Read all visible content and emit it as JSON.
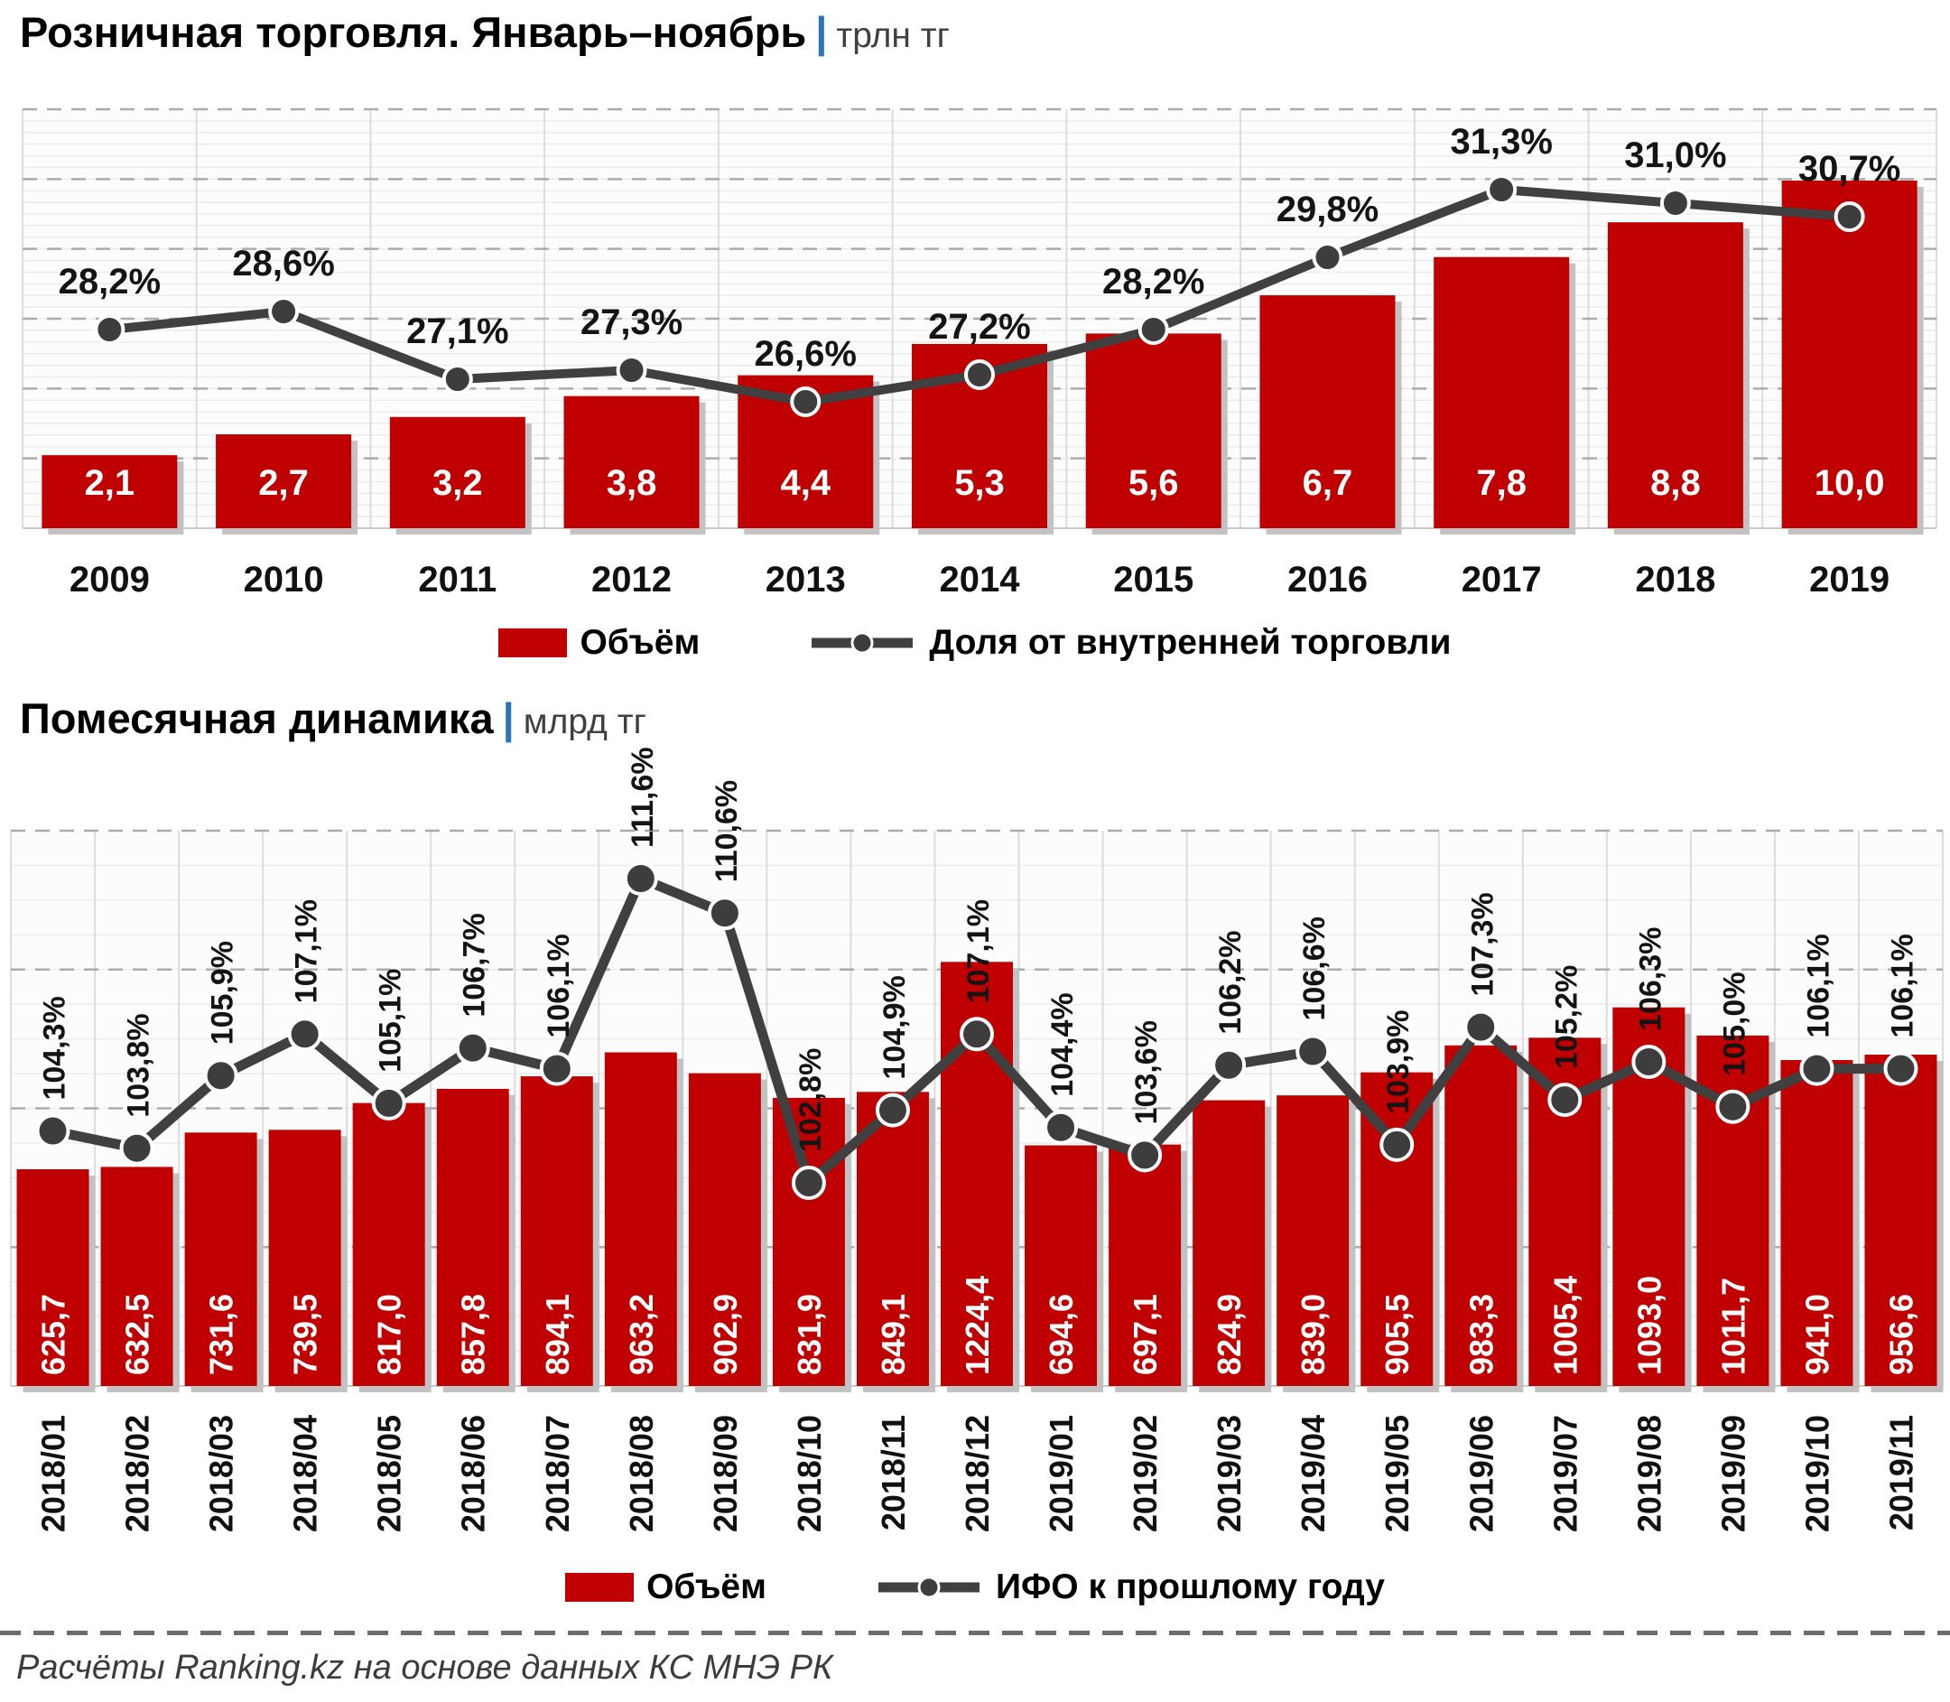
{
  "page": {
    "pipe": "|",
    "footer": "Расчёты Ranking.kz на основе данных КС МНЭ РК"
  },
  "colors": {
    "bar": "#c00000",
    "bar_shadow": "#c2c2c2",
    "line": "#404040",
    "marker_fill": "#3d3d3d",
    "marker_ring": "#ffffff",
    "label_on_bar": "#ffffff",
    "pct_label": "#141414",
    "grid_minor": "#ececec",
    "grid_major": "#ababab",
    "grid_vertical": "#dcdcdc",
    "axis": "#c9c9c9"
  },
  "chart_data": [
    {
      "type": "bar",
      "title": "Розничная торговля. Январь–ноябрь",
      "unit": "трлн тг",
      "legend_position": "bottom",
      "grid": true,
      "categories": [
        "2009",
        "2010",
        "2011",
        "2012",
        "2013",
        "2014",
        "2015",
        "2016",
        "2017",
        "2018",
        "2019"
      ],
      "series": [
        {
          "name": "Объём",
          "type": "bar",
          "values": [
            2.1,
            2.7,
            3.2,
            3.8,
            4.4,
            5.3,
            5.6,
            6.7,
            7.8,
            8.8,
            10.0
          ],
          "labels": [
            "2,1",
            "2,7",
            "3,2",
            "3,8",
            "4,4",
            "5,3",
            "5,6",
            "6,7",
            "7,8",
            "8,8",
            "10,0"
          ]
        },
        {
          "name": "Доля от внутренней торговли",
          "type": "line",
          "values": [
            28.2,
            28.6,
            27.1,
            27.3,
            26.6,
            27.2,
            28.2,
            29.8,
            31.3,
            31.0,
            30.7
          ],
          "labels": [
            "28,2%",
            "28,6%",
            "27,1%",
            "27,3%",
            "26,6%",
            "27,2%",
            "28,2%",
            "29,8%",
            "31,3%",
            "31,0%",
            "30,7%"
          ]
        }
      ],
      "ylim_bars": [
        0,
        12
      ],
      "ylim_line_pct": [
        26,
        32
      ]
    },
    {
      "type": "bar",
      "title": "Помесячная динамика",
      "unit": "млрд тг",
      "legend_position": "bottom",
      "grid": true,
      "categories": [
        "2018/01",
        "2018/02",
        "2018/03",
        "2018/04",
        "2018/05",
        "2018/06",
        "2018/07",
        "2018/08",
        "2018/09",
        "2018/10",
        "2018/11",
        "2018/12",
        "2019/01",
        "2019/02",
        "2019/03",
        "2019/04",
        "2019/05",
        "2019/06",
        "2019/07",
        "2019/08",
        "2019/09",
        "2019/10",
        "2019/11"
      ],
      "series": [
        {
          "name": "Объём",
          "type": "bar",
          "values": [
            625.7,
            632.5,
            731.6,
            739.5,
            817.0,
            857.8,
            894.1,
            963.2,
            902.9,
            831.9,
            849.1,
            1224.4,
            694.6,
            697.1,
            824.9,
            839.0,
            905.5,
            983.3,
            1005.4,
            1093.0,
            1011.7,
            941.0,
            956.6
          ],
          "labels": [
            "625,7",
            "632,5",
            "731,6",
            "739,5",
            "817,0",
            "857,8",
            "894,1",
            "963,2",
            "902,9",
            "831,9",
            "849,1",
            "1224,4",
            "694,6",
            "697,1",
            "824,9",
            "839,0",
            "905,5",
            "983,3",
            "1005,4",
            "1093,0",
            "1011,7",
            "941,0",
            "956,6"
          ]
        },
        {
          "name": "ИФО к прошлому году",
          "type": "line",
          "values": [
            104.3,
            103.8,
            105.9,
            107.1,
            105.1,
            106.7,
            106.1,
            111.6,
            110.6,
            102.8,
            104.9,
            107.1,
            104.4,
            103.6,
            106.2,
            106.6,
            103.9,
            107.3,
            105.2,
            106.3,
            105.0,
            106.1,
            106.1
          ],
          "labels": [
            "104,3%",
            "103,8%",
            "105,9%",
            "107,1%",
            "105,1%",
            "106,7%",
            "106,1%",
            "111,6%",
            "110,6%",
            "102,8%",
            "104,9%",
            "107,1%",
            "104,4%",
            "103,6%",
            "106,2%",
            "106,6%",
            "103,9%",
            "107,3%",
            "105,2%",
            "106,3%",
            "105,0%",
            "106,1%",
            "106,1%"
          ]
        }
      ],
      "ylim_bars": [
        0,
        1600
      ],
      "ylim_line_pct": [
        100,
        114
      ]
    }
  ]
}
